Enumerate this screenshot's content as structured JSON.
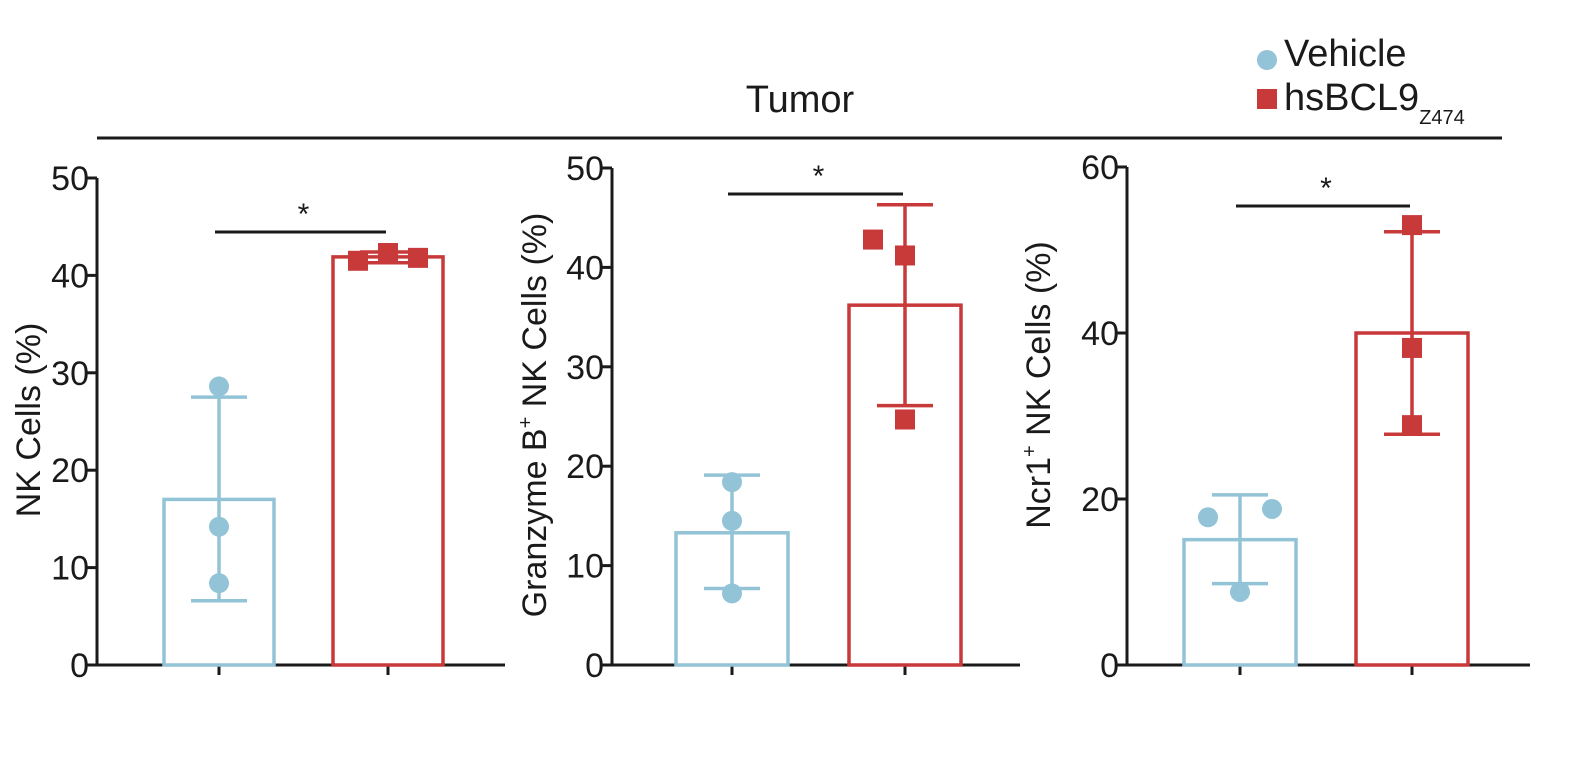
{
  "group_title": "Tumor",
  "legend": {
    "vehicle": "Vehicle",
    "treatment_main": "hsBCL9",
    "treatment_sub": "Z474"
  },
  "colors": {
    "vehicle": "#93c3d6",
    "treatment": "#c8393a",
    "axis": "#1a1a1a"
  },
  "chart_data": [
    {
      "type": "bar",
      "ylabel": "NK Cells (%)",
      "ylim": [
        0,
        50
      ],
      "yticks": [
        "0",
        "10",
        "20",
        "30",
        "40",
        "50"
      ],
      "series": [
        {
          "name": "Vehicle",
          "mean": 17,
          "sd_low": 6.6,
          "sd_high": 27.5,
          "points": [
            28.6,
            14.2,
            8.4
          ]
        },
        {
          "name": "hsBCL9Z474",
          "mean": 41.9,
          "sd_low": 41.3,
          "sd_high": 42.4,
          "points": [
            41.5,
            42.3,
            41.8
          ]
        }
      ],
      "significance": "*"
    },
    {
      "type": "bar",
      "ylabel_pre": "Granzyme B",
      "ylabel_sup": "+",
      "ylabel_post": " NK Cells (%)",
      "ylim": [
        0,
        50
      ],
      "yticks": [
        "0",
        "10",
        "20",
        "30",
        "40",
        "50"
      ],
      "series": [
        {
          "name": "Vehicle",
          "mean": 13.3,
          "sd_low": 7.7,
          "sd_high": 19.1,
          "points": [
            18.4,
            14.5,
            7.2
          ]
        },
        {
          "name": "hsBCL9Z474",
          "mean": 36.2,
          "sd_low": 26.1,
          "sd_high": 46.3,
          "points": [
            42.8,
            41.2,
            24.7
          ]
        }
      ],
      "significance": "*"
    },
    {
      "type": "bar",
      "ylabel_pre": "Ncr1",
      "ylabel_sup": "+",
      "ylabel_post": " NK Cells (%)",
      "ylim": [
        0,
        60
      ],
      "yticks": [
        "0",
        "20",
        "40",
        "60"
      ],
      "series": [
        {
          "name": "Vehicle",
          "mean": 15.1,
          "sd_low": 9.8,
          "sd_high": 20.5,
          "points": [
            17.8,
            18.8,
            8.8
          ]
        },
        {
          "name": "hsBCL9Z474",
          "mean": 40,
          "sd_low": 27.8,
          "sd_high": 52.2,
          "points": [
            53,
            38.2,
            28.9
          ]
        }
      ],
      "significance": "*"
    }
  ]
}
